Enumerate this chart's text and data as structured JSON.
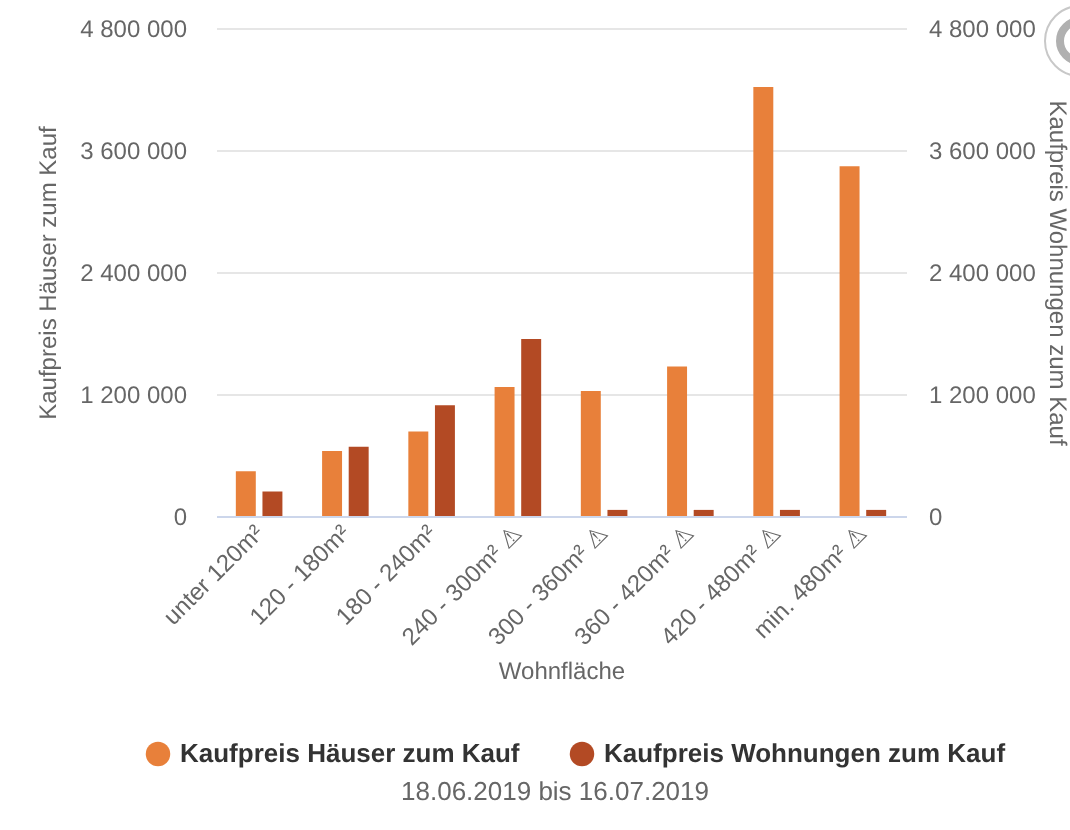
{
  "chart_data": {
    "type": "bar",
    "xlabel": "Wohnfläche",
    "ylabel": "Kaufpreis Häuser zum Kauf",
    "y2label": "Kaufpreis Wohnungen zum Kauf",
    "annotations": [
      "18.06.2019 bis 16.07.2019"
    ],
    "categories": [
      "unter 120m²",
      "120 - 180m²",
      "180 - 240m²",
      "240 - 300m² ⚠",
      "300 - 360m² ⚠",
      "360 - 420m² ⚠",
      "420 - 480m² ⚠",
      "min. 480m² ⚠"
    ],
    "series": [
      {
        "name": "Kaufpreis Häuser zum Kauf",
        "color": "#e8803a",
        "values": [
          440000,
          640000,
          830000,
          1270000,
          1230000,
          1470000,
          4220000,
          3440000
        ]
      },
      {
        "name": "Kaufpreis Wohnungen zum Kauf",
        "color": "#b34a24",
        "axis": "y2",
        "values": [
          240000,
          680000,
          1090000,
          1740000,
          60000,
          60000,
          60000,
          60000
        ]
      }
    ],
    "ylim": [
      0,
      4800000
    ],
    "yticks": [
      0,
      {
        "value": 1200000,
        "label": "1 200 000"
      },
      {
        "value": 2400000,
        "label": "2 400 000"
      },
      {
        "value": 3600000,
        "label": "3 600 000"
      },
      {
        "value": 4800000,
        "label": "4 800 000"
      }
    ],
    "y2lim": [
      0,
      4800000
    ],
    "y2ticks": [
      0,
      {
        "value": 1200000,
        "label": "1 200 000"
      },
      {
        "value": 2400000,
        "label": "2 400 000"
      },
      {
        "value": 3600000,
        "label": "3 600 000"
      },
      {
        "value": 4800000,
        "label": "4 800 000"
      }
    ],
    "grid": "y",
    "legend": "bottom"
  }
}
